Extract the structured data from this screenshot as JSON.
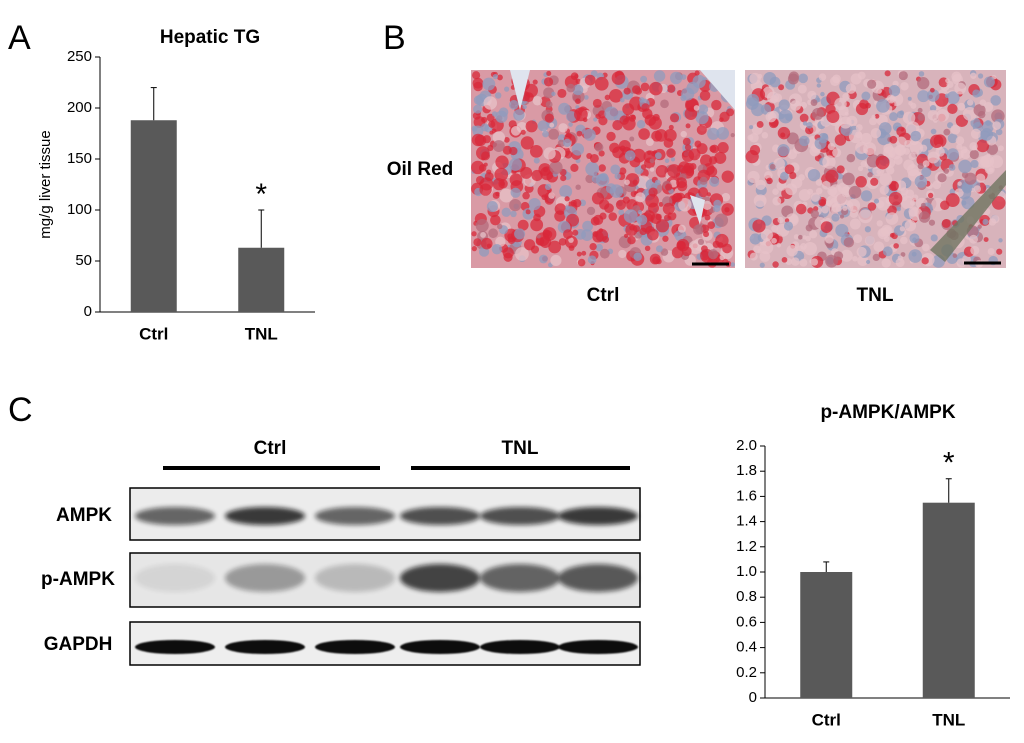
{
  "panel_labels": [
    "A",
    "B",
    "C"
  ],
  "chart_data": [
    {
      "type": "bar",
      "title": "Hepatic TG",
      "y_label": "mg/g  liver tissue",
      "categories": [
        "Ctrl",
        "TNL"
      ],
      "values": [
        188,
        63
      ],
      "errors": [
        32,
        37
      ],
      "color": "#595959",
      "ylim": [
        0,
        250
      ],
      "yticks": [
        0,
        50,
        100,
        150,
        200,
        250
      ],
      "annotation": "*"
    },
    {
      "type": "bar",
      "title": "p-AMPK/AMPK",
      "categories": [
        "Ctrl",
        "TNL"
      ],
      "values": [
        1.0,
        1.55
      ],
      "errors": [
        0.08,
        0.19
      ],
      "color": "#595959",
      "ylim": [
        0,
        2
      ],
      "yticks": [
        0,
        0.2,
        0.4,
        0.6,
        0.8,
        {
          "value": 1,
          "label": "1.0"
        },
        1.2,
        1.4,
        1.6,
        1.8,
        {
          "value": 2,
          "label": "2.0"
        }
      ],
      "annotation": "*"
    }
  ],
  "histology": {
    "stain": "Oil Red",
    "groups": [
      "Ctrl",
      "TNL"
    ]
  },
  "blot": {
    "groups": [
      "Ctrl",
      "TNL"
    ],
    "rows": [
      "AMPK",
      "p-AMPK",
      "GAPDH"
    ]
  }
}
